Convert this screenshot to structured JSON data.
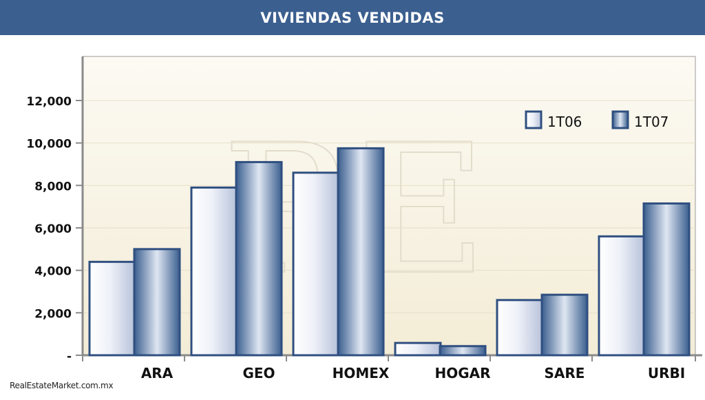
{
  "header": {
    "title": "VIVIENDAS VENDIDAS"
  },
  "chart_data": {
    "type": "bar",
    "title": "VIVIENDAS VENDIDAS",
    "categories": [
      "ARA",
      "GEO",
      "HOMEX",
      "HOGAR",
      "SARE",
      "URBI"
    ],
    "series": [
      {
        "name": "1T06",
        "values": [
          4400,
          7900,
          8600,
          580,
          2600,
          5600
        ]
      },
      {
        "name": "1T07",
        "values": [
          5000,
          9100,
          9750,
          430,
          2850,
          7150
        ]
      }
    ],
    "ylim": [
      0,
      12000
    ],
    "yticks": [
      0,
      2000,
      4000,
      6000,
      8000,
      10000,
      12000
    ],
    "ytick_labels": [
      "-",
      "2,000",
      "4,000",
      "6,000",
      "8,000",
      "10,000",
      "12,000"
    ],
    "xlabel": "",
    "ylabel": "",
    "grid": true,
    "legend_position": "top-right",
    "watermark": "RE",
    "colors": {
      "series_light": "#e8ecf6",
      "series_dark": "#3b5f8f",
      "bar_border": "#2f4f80",
      "plot_bg_top": "#fbf8ee",
      "plot_bg_bottom": "#f4eedb",
      "axis": "#8a8a8a"
    }
  },
  "footer": {
    "source": "RealEstateMarket.com.mx"
  }
}
